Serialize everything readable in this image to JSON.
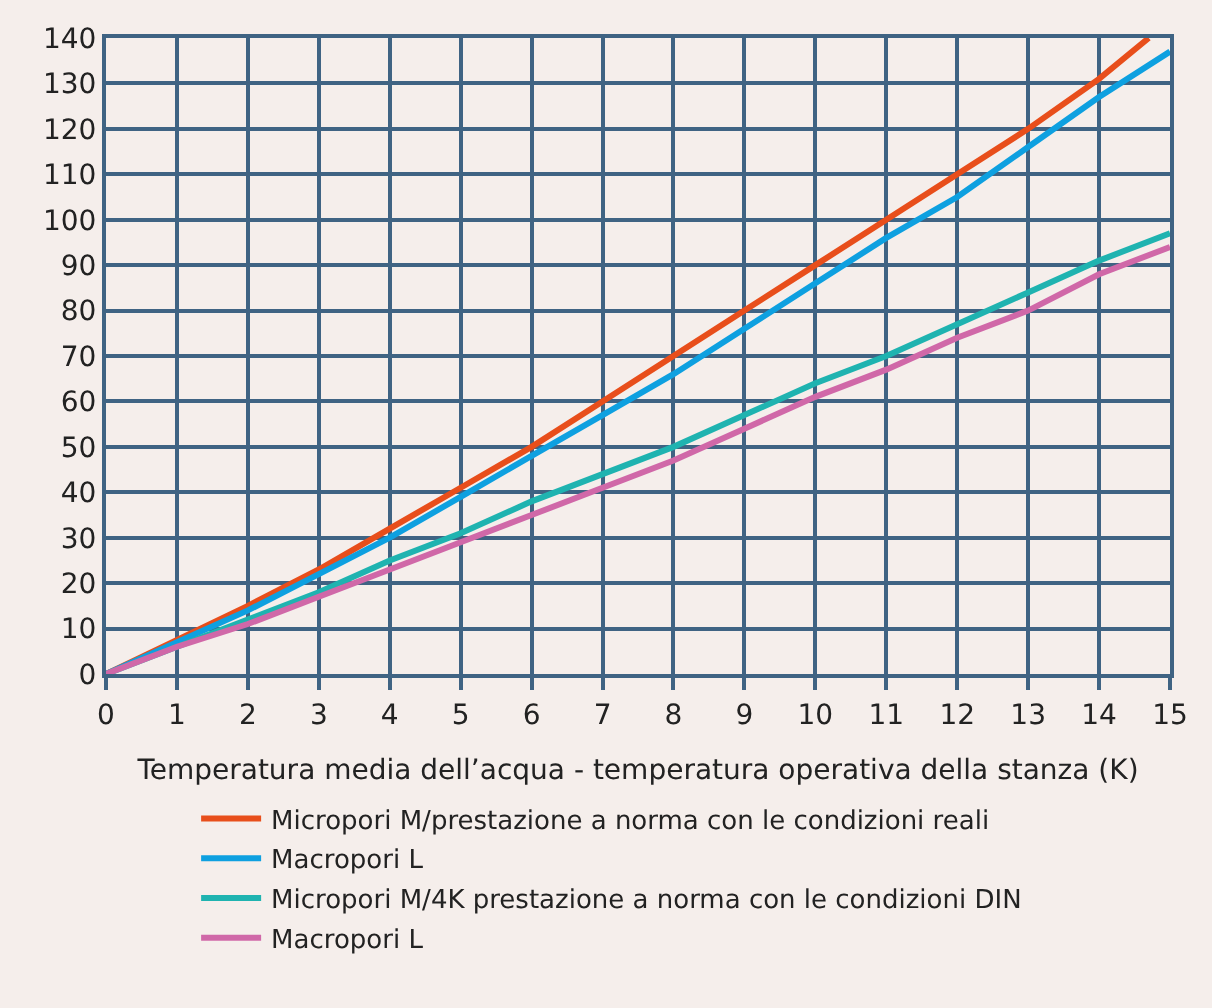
{
  "chart_data": {
    "type": "line",
    "xlabel": "Temperatura media dell’acqua - temperatura operativa della stanza (K)",
    "xlim": [
      0,
      15
    ],
    "xticks": [
      0,
      1,
      2,
      3,
      4,
      5,
      6,
      7,
      8,
      9,
      10,
      11,
      12,
      13,
      14,
      15
    ],
    "ylim": [
      0,
      140
    ],
    "yticks": [
      0,
      10,
      20,
      30,
      40,
      50,
      60,
      70,
      80,
      90,
      100,
      110,
      120,
      130,
      140
    ],
    "grid": true,
    "legend": "bottom",
    "marker": "none",
    "line_style": "solid",
    "series": [
      {
        "name": "Micropori M/prestazione a norma con le condizioni reali",
        "color": "#e84e1b",
        "x": [
          0,
          2,
          3,
          4,
          5,
          6,
          7,
          8,
          9,
          10,
          11,
          12,
          13,
          14,
          14.7
        ],
        "values": [
          0,
          15,
          23,
          32,
          41,
          50,
          60,
          70,
          80,
          90,
          100,
          110,
          120,
          131,
          140
        ]
      },
      {
        "name": "Macropori L",
        "color": "#0ea0e0",
        "x": [
          0,
          1,
          2,
          3,
          4,
          5,
          6,
          7,
          8,
          9,
          10,
          11,
          12,
          13,
          14,
          15
        ],
        "values": [
          0,
          7,
          14,
          22,
          30,
          39,
          48,
          57,
          66,
          76,
          86,
          96,
          105,
          116,
          127,
          137
        ]
      },
      {
        "name": "Micropori M/4K prestazione a norma con le condizioni DIN",
        "color": "#1fb3b0",
        "x": [
          0,
          1,
          2,
          3,
          4,
          5,
          6,
          7,
          8,
          9,
          10,
          11,
          12,
          13,
          14,
          15
        ],
        "values": [
          0,
          6,
          12,
          18,
          25,
          31,
          38,
          44,
          50,
          57,
          64,
          70,
          77,
          84,
          91,
          97
        ]
      },
      {
        "name": "Macropori L",
        "color": "#d068a8",
        "x": [
          0,
          1,
          2,
          3,
          4,
          5,
          6,
          7,
          8,
          9,
          10,
          11,
          12,
          13,
          14,
          15
        ],
        "values": [
          0,
          6,
          11,
          17,
          23,
          29,
          35,
          41,
          47,
          54,
          61,
          67,
          74,
          80,
          88,
          94
        ]
      }
    ]
  }
}
